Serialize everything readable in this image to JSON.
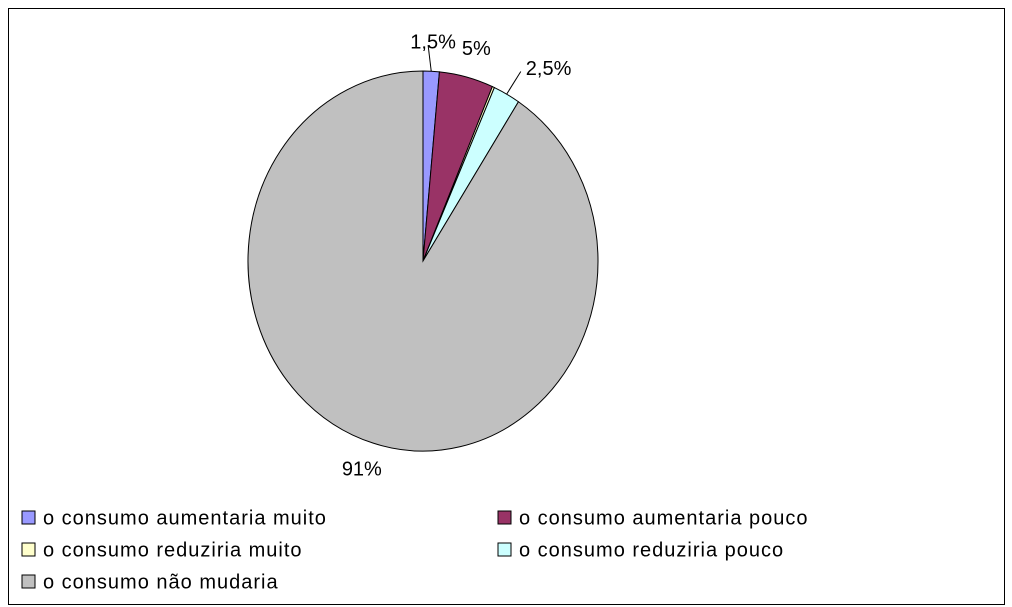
{
  "chart_data": {
    "type": "pie",
    "categories": [
      "o consumo aumentaria muito",
      "o consumo aumentaria pouco",
      "o consumo reduziria muito",
      "o consumo reduziria pouco",
      "o consumo não mudaria"
    ],
    "values": [
      1.5,
      5,
      0.2,
      2.5,
      91
    ],
    "value_labels": [
      "1,5%",
      "5%",
      null,
      "2,5%",
      "91%"
    ],
    "colors": [
      "#9999ff",
      "#993366",
      "#ffffcc",
      "#ccffff",
      "#c0c0c0"
    ]
  }
}
